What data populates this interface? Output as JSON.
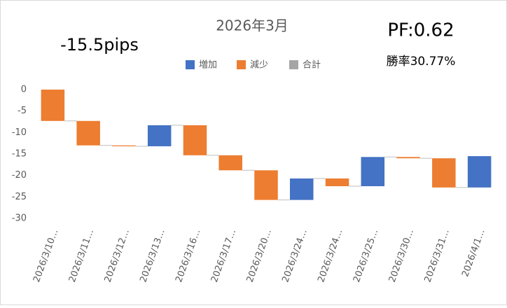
{
  "chart_data": {
    "type": "waterfall",
    "title": "2026年3月",
    "annotations": [
      "-15.5pips",
      "PF:0.62",
      "勝率30.77%"
    ],
    "categories": [
      "2026/3/10…",
      "2026/3/11…",
      "2026/3/12…",
      "2026/3/13…",
      "2026/3/16…",
      "2026/3/17…",
      "2026/3/20…",
      "2026/3/24…",
      "2026/3/24…",
      "2026/3/25…",
      "2026/3/30…",
      "2026/3/31…",
      "2026/4/1…"
    ],
    "values": [
      -7.3,
      -5.7,
      -0.2,
      4.9,
      -7.0,
      -3.5,
      -6.9,
      5.0,
      -1.8,
      6.8,
      -0.3,
      -6.8,
      7.3
    ],
    "legend": [
      {
        "name": "増加",
        "color": "#4472c4"
      },
      {
        "name": "減少",
        "color": "#ed7d31"
      },
      {
        "name": "合計",
        "color": "#a5a5a5"
      }
    ],
    "ylim": [
      -30,
      0
    ],
    "yticks": [
      0,
      -5,
      -10,
      -15,
      -20,
      -25,
      -30
    ],
    "grid": false
  }
}
